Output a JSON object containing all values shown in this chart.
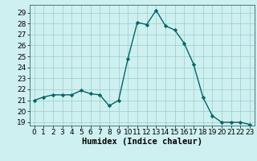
{
  "x": [
    0,
    1,
    2,
    3,
    4,
    5,
    6,
    7,
    8,
    9,
    10,
    11,
    12,
    13,
    14,
    15,
    16,
    17,
    18,
    19,
    20,
    21,
    22,
    23
  ],
  "y": [
    21.0,
    21.3,
    21.5,
    21.5,
    21.5,
    21.9,
    21.6,
    21.5,
    20.5,
    21.0,
    24.8,
    28.1,
    27.9,
    29.2,
    27.8,
    27.4,
    26.2,
    24.3,
    21.3,
    19.6,
    19.0,
    19.0,
    19.0,
    18.8
  ],
  "line_color": "#006666",
  "marker": "D",
  "marker_size": 2.2,
  "bg_color": "#cff0f0",
  "grid_color": "#99cccc",
  "xlabel": "Humidex (Indice chaleur)",
  "xlim": [
    -0.5,
    23.5
  ],
  "ylim": [
    18.7,
    29.7
  ],
  "yticks": [
    19,
    20,
    21,
    22,
    23,
    24,
    25,
    26,
    27,
    28,
    29
  ],
  "xticks": [
    0,
    1,
    2,
    3,
    4,
    5,
    6,
    7,
    8,
    9,
    10,
    11,
    12,
    13,
    14,
    15,
    16,
    17,
    18,
    19,
    20,
    21,
    22,
    23
  ],
  "xlabel_fontsize": 7.5,
  "tick_fontsize": 6.5,
  "line_width": 1.0
}
